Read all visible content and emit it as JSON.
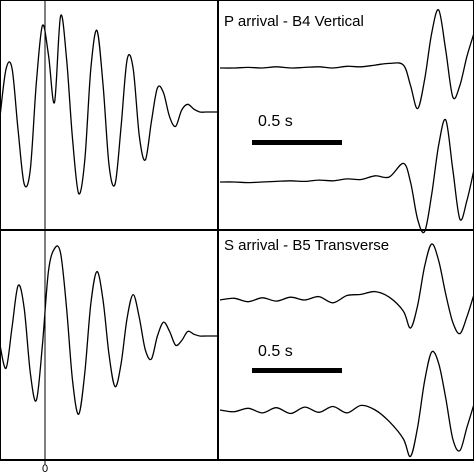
{
  "chart_data": [
    {
      "type": "line",
      "panel": "top-left",
      "title": "",
      "xlabel": "",
      "xticks": [
        "0"
      ],
      "series": [
        {
          "x": [
            -0.5,
            -0.45,
            -0.4,
            -0.35,
            -0.3,
            -0.25,
            -0.2,
            -0.15,
            -0.1,
            -0.05,
            0,
            0.05,
            0.1,
            0.15,
            0.2,
            0.25,
            0.3,
            0.35,
            0.4,
            0.45,
            0.5,
            0.55,
            0.6,
            0.65,
            0.7,
            0.75,
            0.8,
            0.85,
            0.9,
            0.95,
            1.0,
            1.05,
            1.1,
            1.15,
            1.2,
            1.25,
            1.3
          ],
          "values": [
            -0.05,
            0.45,
            0.45,
            -0.2,
            -0.75,
            -0.6,
            0.3,
            0.9,
            0.6,
            0.1,
            1.0,
            0.55,
            -0.3,
            -0.85,
            -0.5,
            0.45,
            0.85,
            0.3,
            -0.55,
            -0.75,
            -0.15,
            0.55,
            0.45,
            -0.25,
            -0.5,
            -0.1,
            0.25,
            0.2,
            -0.05,
            -0.15,
            0.02,
            0.08,
            0.03,
            0.0,
            0.0,
            0.0,
            0.0
          ]
        }
      ]
    },
    {
      "type": "line",
      "panel": "top-right",
      "title": "P arrival - B4 Vertical",
      "scale_bar": "0.5 s",
      "series": [
        {
          "x": [
            0,
            0.1,
            0.2,
            0.3,
            0.4,
            0.5,
            0.6,
            0.7,
            0.8,
            0.9,
            1.0,
            1.1,
            1.2,
            1.3,
            1.35,
            1.4,
            1.45,
            1.5,
            1.55,
            1.6,
            1.65,
            1.7,
            1.75,
            1.8
          ],
          "values": [
            0.0,
            0.0,
            0.01,
            0.0,
            0.02,
            0.0,
            0.01,
            0.02,
            0.0,
            0.03,
            0.02,
            0.05,
            0.08,
            0.05,
            -0.3,
            -0.7,
            -0.2,
            0.6,
            1.0,
            0.3,
            -0.5,
            -0.3,
            0.2,
            0.6
          ]
        },
        {
          "x": [
            0,
            0.1,
            0.2,
            0.3,
            0.4,
            0.5,
            0.6,
            0.7,
            0.8,
            0.9,
            1.0,
            1.1,
            1.2,
            1.3,
            1.35,
            1.4,
            1.45,
            1.5,
            1.55,
            1.6,
            1.65,
            1.7,
            1.75,
            1.8
          ],
          "values": [
            0.0,
            0.0,
            -0.01,
            0.0,
            0.01,
            0.02,
            0.01,
            0.03,
            0.02,
            0.05,
            0.04,
            0.1,
            0.08,
            0.3,
            0.0,
            -0.6,
            -0.8,
            -0.2,
            0.6,
            1.0,
            0.2,
            -0.6,
            -0.3,
            0.2
          ]
        }
      ]
    },
    {
      "type": "line",
      "panel": "bottom-left",
      "title": "",
      "xlabel": "",
      "xticks": [
        "0"
      ],
      "series": [
        {
          "x": [
            -0.5,
            -0.45,
            -0.4,
            -0.35,
            -0.3,
            -0.25,
            -0.2,
            -0.15,
            -0.1,
            -0.05,
            0,
            0.05,
            0.1,
            0.15,
            0.2,
            0.25,
            0.3,
            0.35,
            0.4,
            0.45,
            0.5,
            0.55,
            0.6,
            0.65,
            0.7,
            0.75,
            0.8,
            0.85,
            0.9,
            0.95,
            1.0,
            1.05,
            1.1,
            1.15,
            1.2,
            1.25,
            1.3
          ],
          "values": [
            -0.1,
            -0.35,
            0.1,
            0.55,
            0.3,
            -0.4,
            -0.7,
            -0.1,
            0.7,
            0.95,
            0.9,
            0.3,
            -0.5,
            -0.85,
            -0.4,
            0.35,
            0.7,
            0.4,
            -0.2,
            -0.55,
            -0.3,
            0.2,
            0.45,
            0.2,
            -0.15,
            -0.25,
            0.0,
            0.15,
            0.05,
            -0.1,
            -0.05,
            0.05,
            0.02,
            0.0,
            0.0,
            0.0,
            0.0
          ]
        }
      ]
    },
    {
      "type": "line",
      "panel": "bottom-right",
      "title": "S arrival - B5 Transverse",
      "scale_bar": "0.5 s",
      "series": [
        {
          "x": [
            0,
            0.1,
            0.2,
            0.3,
            0.4,
            0.5,
            0.6,
            0.7,
            0.8,
            0.9,
            1.0,
            1.1,
            1.2,
            1.3,
            1.35,
            1.4,
            1.45,
            1.5,
            1.55,
            1.6,
            1.65,
            1.7,
            1.75,
            1.8
          ],
          "values": [
            0.0,
            0.03,
            -0.03,
            0.04,
            -0.02,
            0.05,
            0.0,
            0.06,
            -0.05,
            0.08,
            0.1,
            0.15,
            0.05,
            -0.2,
            -0.5,
            -0.1,
            0.6,
            1.0,
            0.7,
            0.1,
            -0.4,
            -0.6,
            -0.3,
            0.1
          ]
        },
        {
          "x": [
            0,
            0.1,
            0.2,
            0.3,
            0.4,
            0.5,
            0.6,
            0.7,
            0.8,
            0.9,
            1.0,
            1.1,
            1.2,
            1.3,
            1.35,
            1.4,
            1.45,
            1.5,
            1.55,
            1.6,
            1.65,
            1.7,
            1.75,
            1.8
          ],
          "values": [
            0.0,
            -0.03,
            0.03,
            -0.05,
            0.04,
            -0.06,
            0.05,
            -0.04,
            0.06,
            -0.05,
            0.08,
            0.0,
            -0.2,
            -0.5,
            -0.8,
            -0.3,
            0.5,
            1.0,
            0.8,
            0.2,
            -0.5,
            -0.7,
            -0.3,
            0.1
          ]
        }
      ]
    }
  ]
}
